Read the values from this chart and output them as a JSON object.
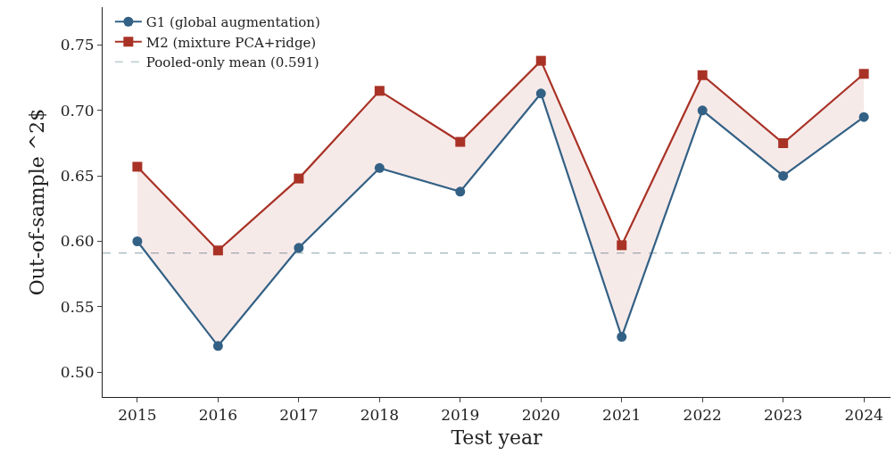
{
  "chart_data": {
    "type": "line",
    "xlabel": "Test year",
    "ylabel": "Out-of-sample ^2$",
    "categories": [
      "2015",
      "2016",
      "2017",
      "2018",
      "2019",
      "2020",
      "2021",
      "2022",
      "2023",
      "2024"
    ],
    "series": [
      {
        "name": "G1 (global augmentation)",
        "color": "#336185",
        "marker": "circle",
        "values": [
          0.6,
          0.52,
          0.595,
          0.656,
          0.638,
          0.713,
          0.527,
          0.7,
          0.65,
          0.695
        ]
      },
      {
        "name": "M2 (mixture PCA+ridge)",
        "color": "#a93226",
        "marker": "square",
        "values": [
          0.657,
          0.593,
          0.648,
          0.715,
          0.676,
          0.738,
          0.597,
          0.727,
          0.675,
          0.728
        ],
        "lower": [
          0.6,
          0.52,
          0.595,
          0.656,
          0.638,
          0.713,
          0.527,
          0.7,
          0.65,
          0.695
        ],
        "upper": [
          0.657,
          0.593,
          0.648,
          0.715,
          0.676,
          0.738,
          0.597,
          0.727,
          0.675,
          0.728
        ]
      }
    ],
    "ylim": [
      0.481,
      0.779
    ],
    "yticks": [
      {
        "value": 0.5,
        "label": "0.50"
      },
      {
        "value": 0.55,
        "label": "0.55"
      },
      {
        "value": 0.6,
        "label": "0.60"
      },
      {
        "value": 0.65,
        "label": "0.65"
      },
      {
        "value": 0.7,
        "label": "0.70"
      },
      {
        "value": 0.75,
        "label": "0.75"
      }
    ],
    "ref_lines": [
      {
        "axis": "y",
        "value": 0.591,
        "label": "Pooled-only mean (0.591)",
        "color": "#a0b4bc",
        "line_style": "dashed"
      }
    ],
    "grid": false,
    "legend": "top left",
    "line_style": "solid"
  }
}
